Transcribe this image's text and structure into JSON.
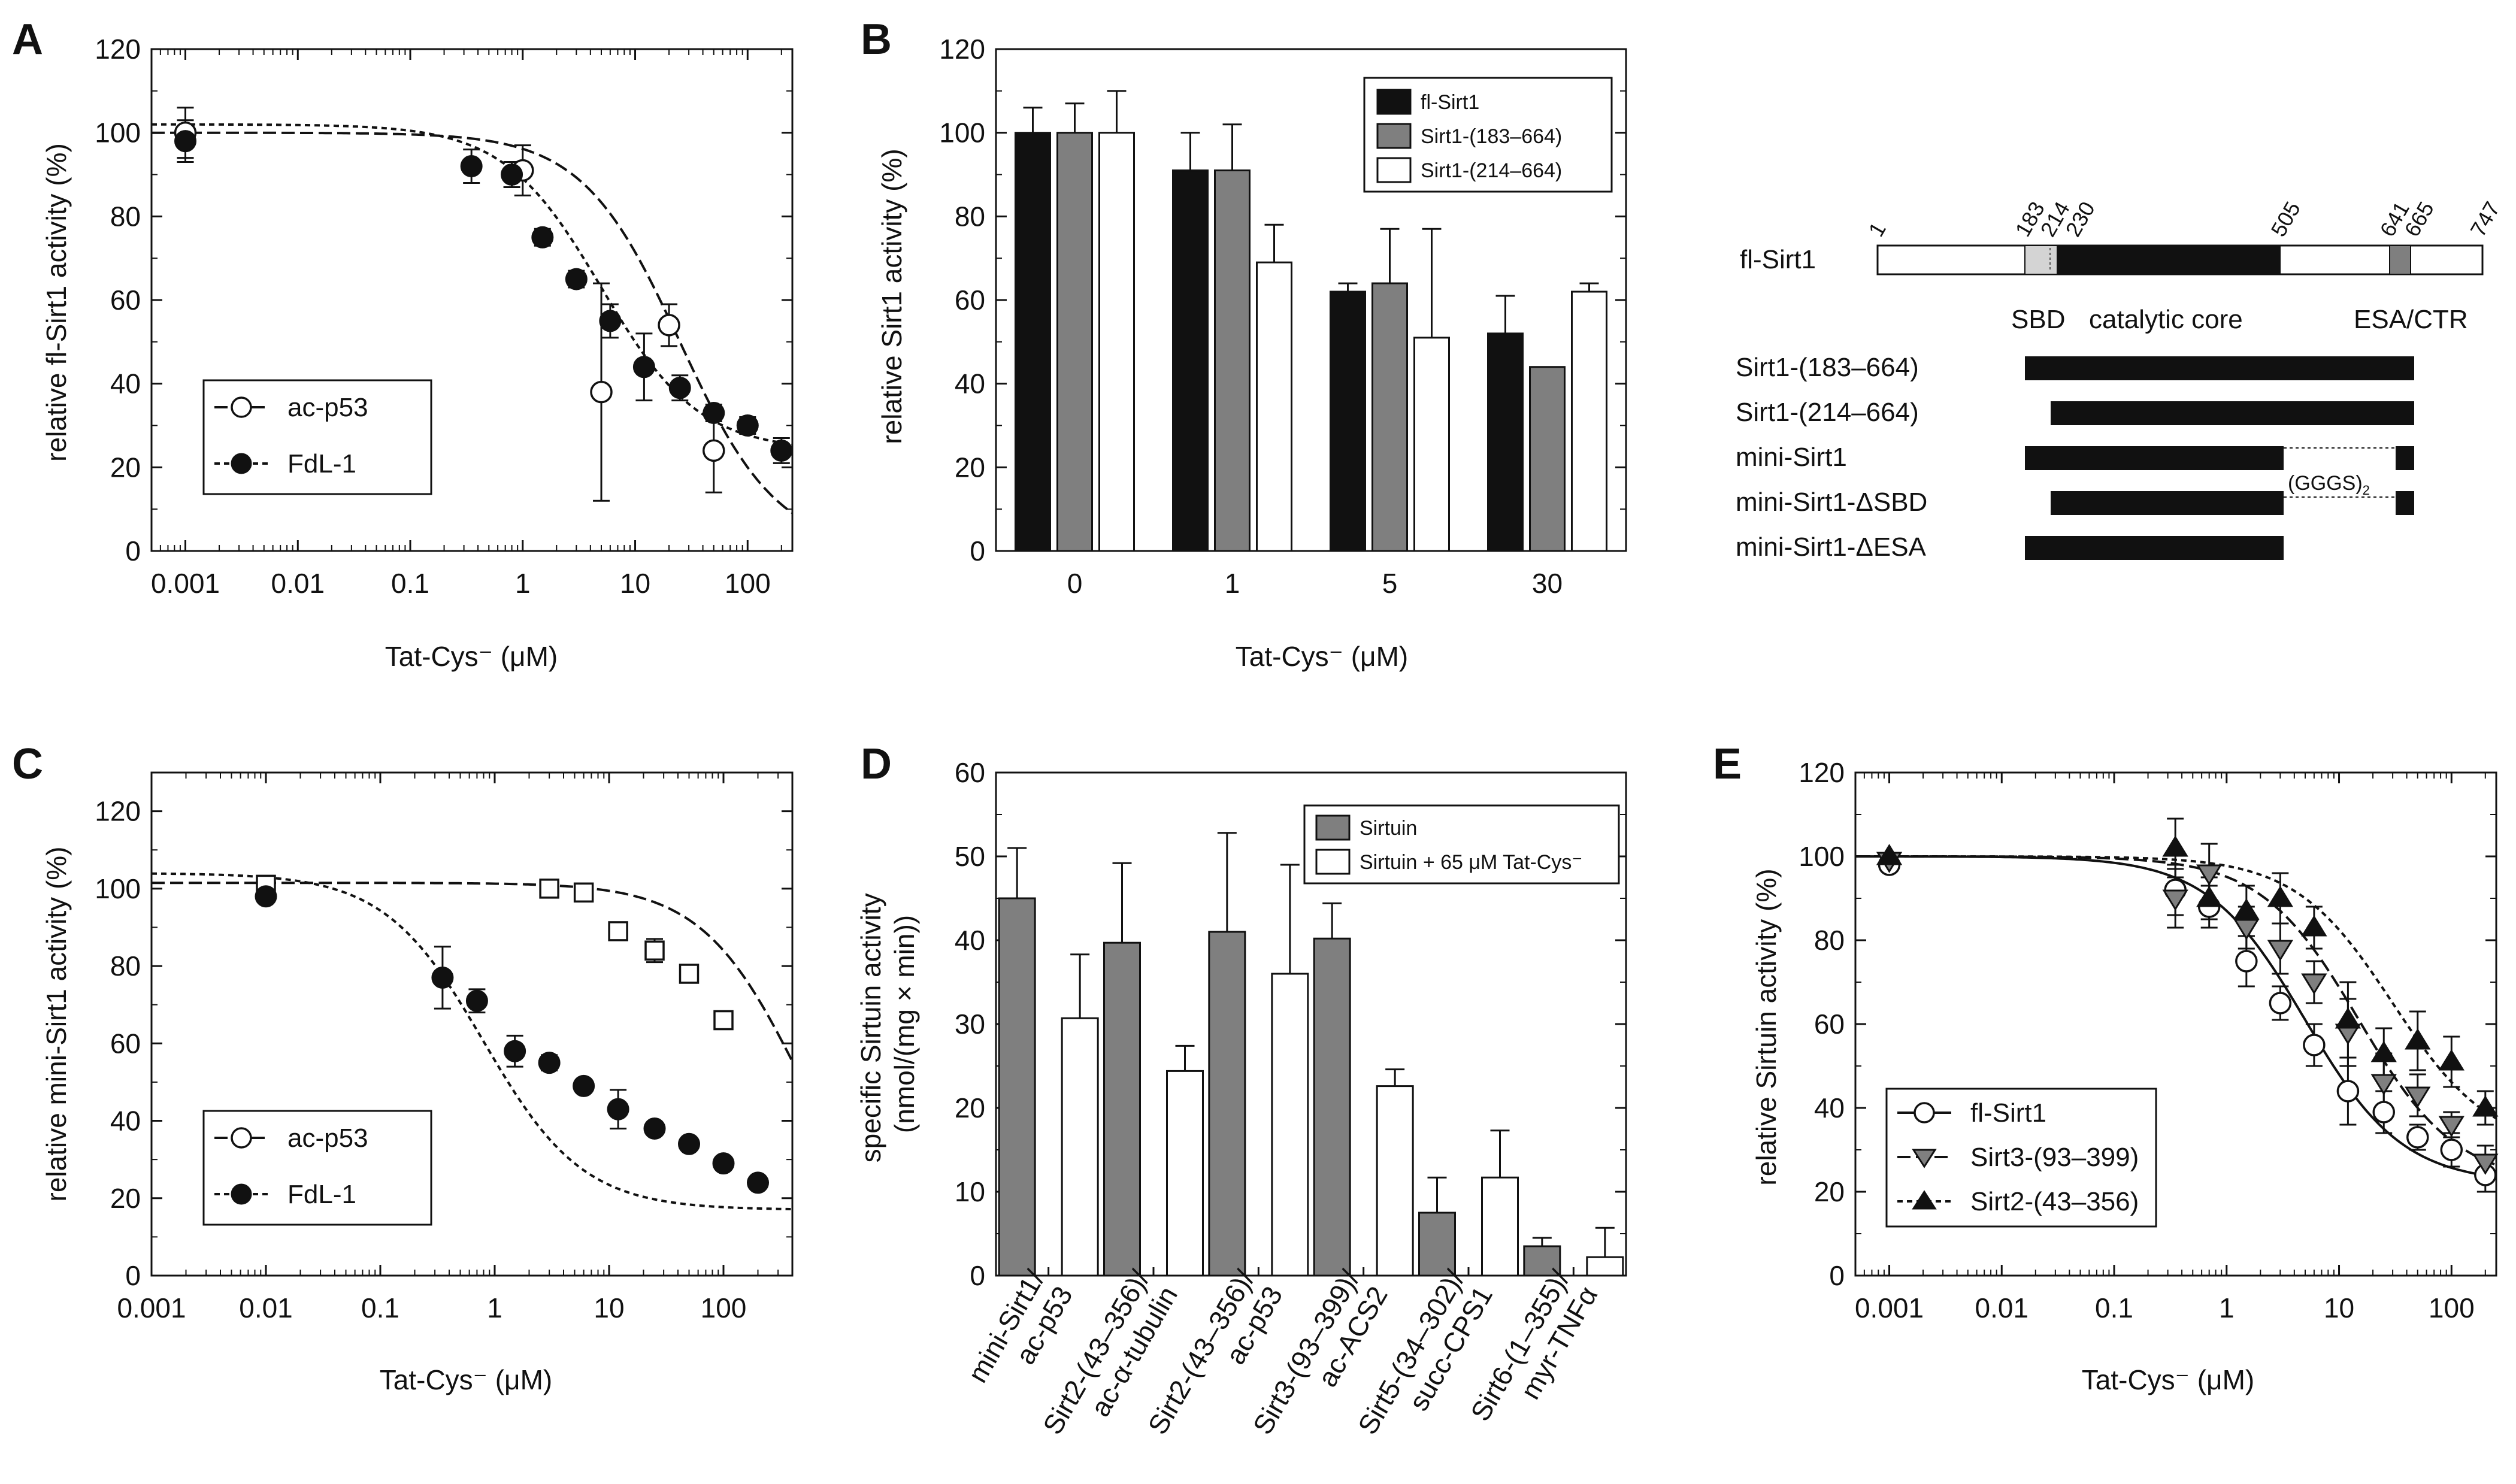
{
  "colors": {
    "black": "#111111",
    "gray": "#7f7f7f",
    "white": "#ffffff",
    "light": "#d4d4d4"
  },
  "chart_data": [
    {
      "panel": "A",
      "type": "scatter",
      "xscale": "log",
      "xlabel": "Tat-Cys⁻ (μM)",
      "ylabel": "relative fl-Sirt1 activity (%)",
      "xlim": [
        0.0005,
        250
      ],
      "ylim": [
        0,
        120
      ],
      "xticks": [
        0.001,
        0.01,
        0.1,
        1,
        10,
        100
      ],
      "xtick_labels": [
        "0.001",
        "0.01",
        "0.1",
        "1",
        "10",
        "100"
      ],
      "yticks": [
        0,
        20,
        40,
        60,
        80,
        100,
        120
      ],
      "legend": "lower-left",
      "series": [
        {
          "name": "ac-p53",
          "marker": "circle-open",
          "line": "long-dash",
          "ic50": 25,
          "top": 100,
          "points": [
            [
              0.001,
              100,
              6
            ],
            [
              1,
              91,
              6
            ],
            [
              5,
              38,
              26
            ],
            [
              20,
              54,
              5
            ],
            [
              50,
              24,
              10
            ]
          ]
        },
        {
          "name": "FdL-1",
          "marker": "circle-filled",
          "line": "short-dash",
          "ic50": 5,
          "top": 102,
          "bottom": 24,
          "points": [
            [
              0.001,
              98,
              5
            ],
            [
              0.35,
              92,
              4
            ],
            [
              0.8,
              90,
              3
            ],
            [
              1.5,
              75,
              2
            ],
            [
              3,
              65,
              2
            ],
            [
              6,
              55,
              4
            ],
            [
              12,
              44,
              8
            ],
            [
              25,
              39,
              3
            ],
            [
              50,
              33,
              2
            ],
            [
              100,
              30,
              2
            ],
            [
              200,
              24,
              3
            ]
          ]
        }
      ]
    },
    {
      "panel": "B",
      "type": "bar",
      "categories": [
        "0",
        "1",
        "5",
        "30"
      ],
      "xlabel": "Tat-Cys⁻ (μM)",
      "ylabel": "relative Sirt1 activity (%)",
      "ylim": [
        0,
        120
      ],
      "yticks": [
        0,
        20,
        40,
        60,
        80,
        100,
        120
      ],
      "legend": "top-right",
      "series": [
        {
          "name": "fl-Sirt1",
          "color": "#111111",
          "values": [
            100,
            91,
            62,
            52
          ],
          "errors": [
            6,
            9,
            2,
            9
          ]
        },
        {
          "name": "Sirt1-(183–664)",
          "color": "#7f7f7f",
          "values": [
            100,
            91,
            64,
            44
          ],
          "errors": [
            7,
            11,
            13,
            0
          ]
        },
        {
          "name": "Sirt1-(214–664)",
          "color": "#ffffff",
          "values": [
            100,
            69,
            51,
            62
          ],
          "errors": [
            10,
            9,
            26,
            2
          ]
        }
      ]
    },
    {
      "panel": "C",
      "type": "scatter",
      "xscale": "log",
      "xlabel": "Tat-Cys⁻ (μM)",
      "ylabel": "relative mini-Sirt1 activity (%)",
      "xlim": [
        0.001,
        400
      ],
      "ylim": [
        0,
        130
      ],
      "xticks": [
        0.001,
        0.01,
        0.1,
        1,
        10,
        100
      ],
      "xtick_labels": [
        "0.001",
        "0.01",
        "0.1",
        "1",
        "10",
        "100"
      ],
      "yticks": [
        0,
        20,
        40,
        60,
        80,
        100,
        120
      ],
      "legend": "lower-left",
      "series": [
        {
          "name": "ac-p53",
          "marker": "square-open",
          "line": "long-dash",
          "ic50": 480,
          "top": 101.5,
          "points": [
            [
              0.01,
              101,
              0
            ],
            [
              3,
              100,
              0
            ],
            [
              6,
              99,
              0
            ],
            [
              12,
              89,
              2
            ],
            [
              25,
              84,
              3
            ],
            [
              50,
              78,
              2
            ],
            [
              100,
              66,
              2
            ]
          ]
        },
        {
          "name": "FdL-1",
          "marker": "circle-filled",
          "line": "short-dash",
          "ic50": 0.8,
          "top": 104,
          "bottom": 17,
          "points": [
            [
              0.01,
              98,
              0
            ],
            [
              0.35,
              77,
              8
            ],
            [
              0.7,
              71,
              3
            ],
            [
              1.5,
              58,
              4
            ],
            [
              3,
              55,
              2
            ],
            [
              6,
              49,
              0
            ],
            [
              12,
              43,
              5
            ],
            [
              25,
              38,
              0
            ],
            [
              50,
              34,
              0
            ],
            [
              100,
              29,
              0
            ],
            [
              200,
              24,
              0
            ]
          ]
        }
      ]
    },
    {
      "panel": "D",
      "type": "bar",
      "categories": [
        "mini-Sirt1/\nac-p53",
        "Sirt2-(43–356)/\nac-α-tubulin",
        "Sirt2-(43–356)/\nac-p53",
        "Sirt3-(93–399)/\nac-ACS2",
        "Sirt5-(34–302)/\nsucc-CPS1",
        "Sirt6-(1–355)/\nmyr-TNFα"
      ],
      "xlabel": "",
      "ylabel": "specific Sirtuin activity\n(nmol/(mg × min))",
      "ylim": [
        0,
        60
      ],
      "yticks": [
        0,
        10,
        20,
        30,
        40,
        50,
        60
      ],
      "legend": "top-right",
      "series": [
        {
          "name": "Sirtuin",
          "color": "#7f7f7f",
          "values": [
            45,
            39.7,
            41,
            40.2,
            7.5,
            3.5
          ],
          "errors": [
            6,
            9.5,
            11.8,
            4.2,
            4.2,
            1
          ]
        },
        {
          "name": "Sirtuin + 65 μM Tat-Cys⁻",
          "color": "#ffffff",
          "values": [
            30.7,
            24.4,
            36,
            22.6,
            11.7,
            2.2
          ],
          "errors": [
            7.6,
            3,
            13,
            2,
            5.6,
            3.5
          ]
        }
      ]
    },
    {
      "panel": "E",
      "type": "scatter",
      "xscale": "log",
      "xlabel": "Tat-Cys⁻ (μM)",
      "ylabel": "relative Sirtuin activity (%)",
      "xlim": [
        0.0005,
        250
      ],
      "ylim": [
        0,
        120
      ],
      "xticks": [
        0.001,
        0.01,
        0.1,
        1,
        10,
        100
      ],
      "xtick_labels": [
        "0.001",
        "0.01",
        "0.1",
        "1",
        "10",
        "100"
      ],
      "yticks": [
        0,
        20,
        40,
        60,
        80,
        100,
        120
      ],
      "legend": "lower-left",
      "series": [
        {
          "name": "fl-Sirt1",
          "marker": "circle-open",
          "line": "solid",
          "ic50": 5,
          "top": 100,
          "bottom": 22,
          "points": [
            [
              0.001,
              98,
              0
            ],
            [
              0.35,
              92,
              6
            ],
            [
              0.7,
              88,
              5
            ],
            [
              1.5,
              75,
              6
            ],
            [
              3,
              65,
              4
            ],
            [
              6,
              55,
              5
            ],
            [
              12,
              44,
              8
            ],
            [
              25,
              39,
              5
            ],
            [
              50,
              33,
              3
            ],
            [
              100,
              30,
              4
            ],
            [
              200,
              24,
              4
            ]
          ]
        },
        {
          "name": "Sirt3-(93–399)",
          "marker": "triangle-down-gray",
          "line": "long-dash",
          "ic50": 15,
          "top": 100,
          "bottom": 22,
          "points": [
            [
              0.001,
              99,
              0
            ],
            [
              0.35,
              90,
              7
            ],
            [
              0.7,
              96,
              7
            ],
            [
              1.5,
              83,
              5
            ],
            [
              3,
              78,
              6
            ],
            [
              6,
              70,
              5
            ],
            [
              12,
              58,
              8
            ],
            [
              25,
              46,
              7
            ],
            [
              50,
              43,
              5
            ],
            [
              100,
              36,
              3
            ],
            [
              200,
              27,
              4
            ]
          ]
        },
        {
          "name": "Sirt2-(43–356)",
          "marker": "triangle-up-filled",
          "line": "short-dash",
          "ic50": 30,
          "top": 100,
          "bottom": 30,
          "points": [
            [
              0.001,
              100,
              0
            ],
            [
              0.35,
              102,
              7
            ],
            [
              0.7,
              90,
              5
            ],
            [
              1.5,
              87,
              6
            ],
            [
              3,
              90,
              6
            ],
            [
              6,
              83,
              5
            ],
            [
              12,
              61,
              9
            ],
            [
              25,
              53,
              6
            ],
            [
              50,
              56,
              7
            ],
            [
              100,
              51,
              6
            ],
            [
              200,
              40,
              4
            ]
          ]
        }
      ]
    }
  ],
  "panel_labels": {
    "a": "A",
    "b": "B",
    "c": "C",
    "d": "D",
    "e": "E"
  },
  "diagram": {
    "fl_label": "fl-Sirt1",
    "positions": [
      "1",
      "183",
      "214",
      "230",
      "505",
      "641",
      "665",
      "747"
    ],
    "domain_labels": {
      "sbd": "SBD",
      "core": "catalytic core",
      "esa": "ESA/CTR"
    },
    "constructs": [
      {
        "name": "Sirt1-(183–664)"
      },
      {
        "name": "Sirt1-(214–664)"
      },
      {
        "name": "mini-Sirt1"
      },
      {
        "name": "mini-Sirt1-ΔSBD"
      },
      {
        "name": "mini-Sirt1-ΔESA"
      }
    ],
    "linker_label": "(GGGS)",
    "linker_subscript": "2"
  }
}
